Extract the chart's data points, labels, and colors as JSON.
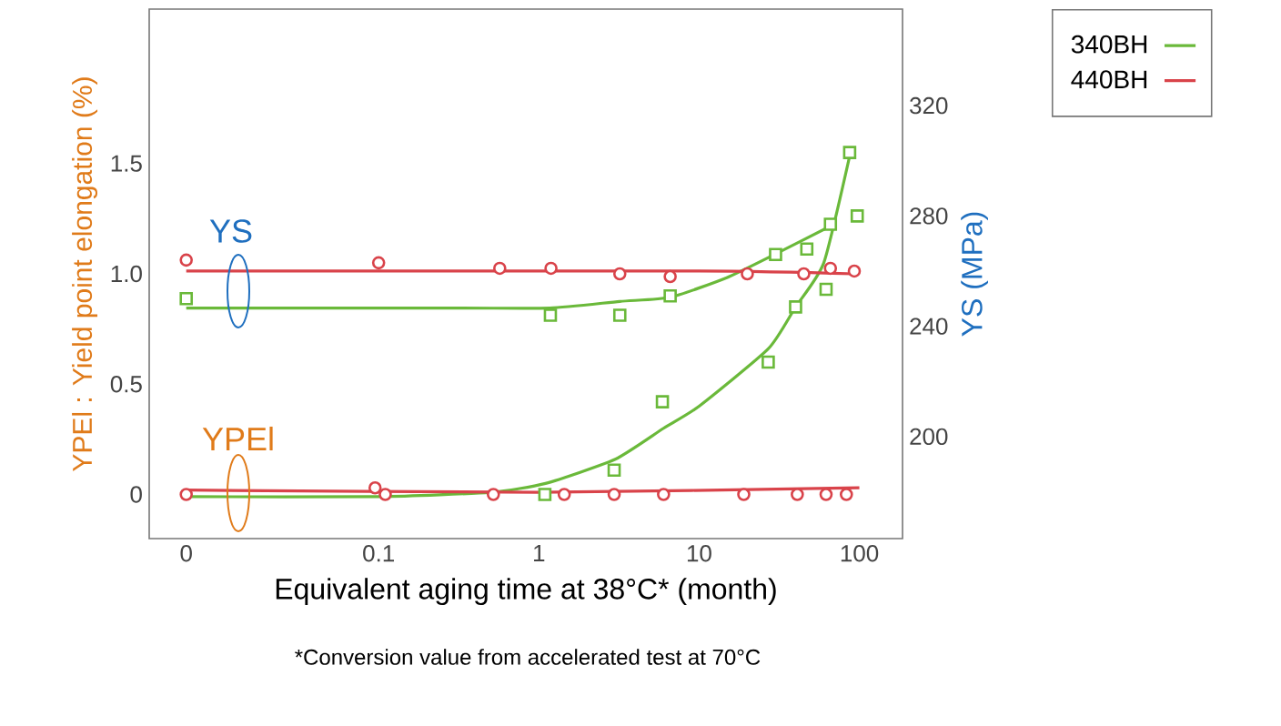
{
  "chart_data": {
    "type": "scatter",
    "xlabel": "Equivalent aging time at 38°C* (month)",
    "ylabel": "YPEl : Yield point elongation (%)",
    "y2label": "YS (MPa)",
    "annotations": [
      "YS",
      "YPEl",
      "*Conversion value from accelerated test at 70°C"
    ],
    "log": "x",
    "xlim": [
      0.0037,
      186
    ],
    "xticks": [
      {
        "value": 0.0063,
        "label": "0"
      },
      0.1,
      1,
      10,
      100
    ],
    "ylim": [
      -0.2,
      2.2
    ],
    "yticks": [
      0,
      0.5,
      {
        "value": 1.0,
        "label": "1.0"
      },
      1.5
    ],
    "y2lim": [
      163,
      355
    ],
    "y2ticks": [
      200,
      240,
      280,
      320
    ],
    "legend": "top right",
    "series": [
      {
        "axis": "y2",
        "color": "#6ab93a",
        "marker": "square",
        "x": [
          0.0063,
          1.18,
          3.2,
          6.6,
          30,
          47,
          66,
          97
        ],
        "values": [
          250,
          244,
          244,
          251,
          266,
          268,
          277,
          280
        ]
      },
      {
        "axis": "y2",
        "color": "#d9434a",
        "marker": "circle",
        "x": [
          0.0063,
          0.1,
          0.57,
          1.19,
          3.2,
          6.6,
          20,
          45,
          66,
          93
        ],
        "values": [
          264,
          263,
          261,
          261,
          259,
          258,
          259,
          259,
          261,
          260
        ]
      },
      {
        "axis": "y",
        "color": "#6ab93a",
        "marker": "square",
        "x": [
          1.09,
          2.95,
          5.9,
          27,
          40,
          62,
          87
        ],
        "values": [
          0.0,
          0.11,
          0.42,
          0.6,
          0.85,
          0.93,
          1.55
        ]
      },
      {
        "axis": "y",
        "color": "#d9434a",
        "marker": "circle",
        "x": [
          0.0063,
          0.095,
          0.11,
          0.52,
          1.44,
          2.95,
          6.0,
          19,
          41,
          62,
          83
        ],
        "values": [
          0,
          0.03,
          0,
          0,
          0,
          0,
          0,
          0,
          0,
          0,
          0
        ]
      },
      {
        "type": "line",
        "axis": "y2",
        "name": "340BH",
        "color": "#6ab93a",
        "marker": "none",
        "x": [
          0.0063,
          0.3,
          1.17,
          3.2,
          6.6,
          15,
          30,
          67
        ],
        "values": [
          246.6,
          246.6,
          246.6,
          249,
          250.5,
          257.7,
          266.2,
          276.5
        ]
      },
      {
        "type": "line",
        "axis": "y2",
        "name": "440BH",
        "color": "#d9434a",
        "marker": "none",
        "x": [
          0.0063,
          10,
          93
        ],
        "values": [
          260,
          260,
          259
        ]
      },
      {
        "type": "line",
        "axis": "y",
        "color": "#6ab93a",
        "marker": "none",
        "x": [
          0.0063,
          0.1,
          0.5,
          1.1,
          3,
          6,
          10,
          27,
          40,
          60,
          88
        ],
        "values": [
          -0.01,
          -0.01,
          0.01,
          0.05,
          0.16,
          0.3,
          0.4,
          0.66,
          0.85,
          1.05,
          1.55
        ]
      },
      {
        "type": "line",
        "axis": "y",
        "color": "#d9434a",
        "marker": "none",
        "x": [
          0.0063,
          1,
          100
        ],
        "values": [
          0.02,
          0.01,
          0.03
        ]
      }
    ]
  }
}
